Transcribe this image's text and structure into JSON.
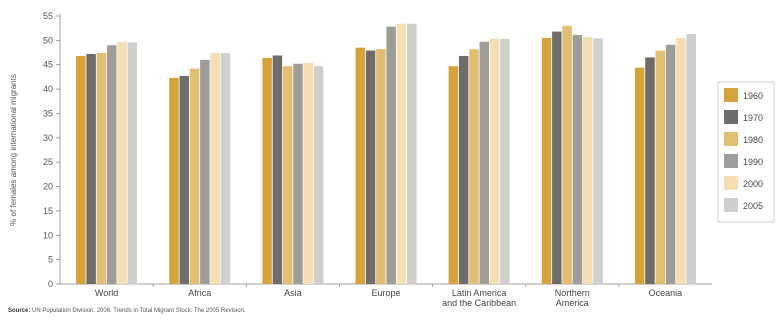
{
  "source": {
    "label": "Source:",
    "text": "UN Population Division. 2006. Trends in Total Migrant Stock: The 2005 Revision."
  },
  "chart_data": {
    "type": "bar",
    "ylabel": "% of females among international migrants",
    "ylim": [
      0,
      55
    ],
    "yticks": [
      0,
      5,
      10,
      15,
      20,
      25,
      30,
      35,
      40,
      45,
      50,
      55
    ],
    "grid": false,
    "legend_position": "right",
    "categories": [
      [
        "World"
      ],
      [
        "Africa"
      ],
      [
        "Asia"
      ],
      [
        "Europe"
      ],
      [
        "Latin America",
        "and the Caribbean"
      ],
      [
        "Northern",
        "America"
      ],
      [
        "Oceania"
      ]
    ],
    "series": [
      {
        "name": "1960",
        "color": "#d6a33a",
        "values": [
          46.8,
          42.3,
          46.4,
          48.5,
          44.7,
          50.5,
          44.4
        ]
      },
      {
        "name": "1970",
        "color": "#6e6d69",
        "values": [
          47.2,
          42.7,
          46.9,
          47.9,
          46.8,
          51.8,
          46.5
        ]
      },
      {
        "name": "1980",
        "color": "#e2be72",
        "values": [
          47.4,
          44.2,
          44.7,
          48.2,
          48.2,
          53.0,
          47.9
        ]
      },
      {
        "name": "1990",
        "color": "#9e9d98",
        "values": [
          49.0,
          46.0,
          45.2,
          52.8,
          49.7,
          51.1,
          49.1
        ]
      },
      {
        "name": "2000",
        "color": "#f3dfb2",
        "values": [
          49.7,
          47.4,
          45.4,
          53.4,
          50.4,
          50.7,
          50.5
        ]
      },
      {
        "name": "2005",
        "color": "#cfcfcc",
        "values": [
          49.6,
          47.4,
          44.7,
          53.4,
          50.3,
          50.4,
          51.3
        ]
      }
    ]
  }
}
